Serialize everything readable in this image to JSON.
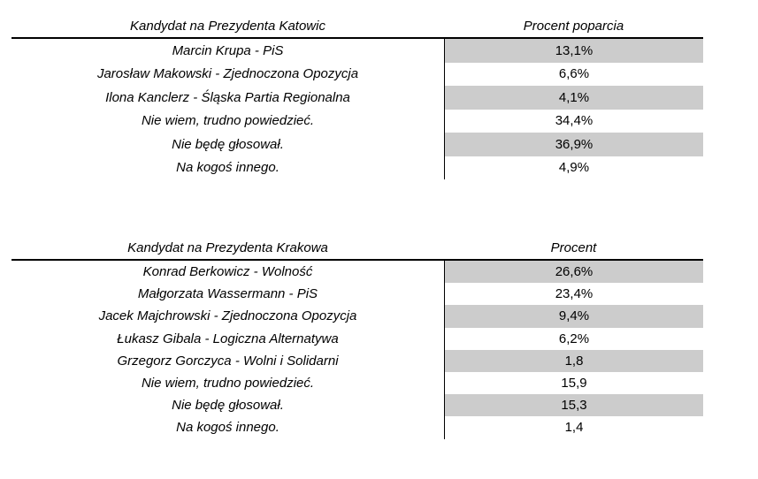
{
  "page": {
    "background": "#ffffff",
    "text_color": "#000000",
    "line_color": "#000000",
    "shade_color": "#cccccc"
  },
  "chart_data": [
    {
      "type": "table",
      "title": "Kandydat na Prezydenta Katowic",
      "columns": [
        "Kandydat na Prezydenta Katowic",
        "Procent poparcia"
      ],
      "rows": [
        {
          "label": "Marcin Krupa - PiS",
          "value": "13,1%",
          "shaded": true
        },
        {
          "label": "Jarosław Makowski - Zjednoczona Opozycja",
          "value": "6,6%",
          "shaded": false
        },
        {
          "label": "Ilona Kanclerz - Śląska Partia Regionalna",
          "value": "4,1%",
          "shaded": true
        },
        {
          "label": "Nie wiem, trudno powiedzieć.",
          "value": "34,4%",
          "shaded": false
        },
        {
          "label": "Nie będę głosował.",
          "value": "36,9%",
          "shaded": true
        },
        {
          "label": "Na kogoś innego.",
          "value": "4,9%",
          "shaded": false
        }
      ]
    },
    {
      "type": "table",
      "title": "Kandydat na Prezydenta Krakowa",
      "columns": [
        "Kandydat na Prezydenta Krakowa",
        "Procent"
      ],
      "rows": [
        {
          "label": "Konrad Berkowicz - Wolność",
          "value": "26,6%",
          "shaded": true
        },
        {
          "label": "Małgorzata Wassermann - PiS",
          "value": "23,4%",
          "shaded": false
        },
        {
          "label": "Jacek Majchrowski - Zjednoczona Opozycja",
          "value": "9,4%",
          "shaded": true
        },
        {
          "label": "Łukasz Gibala - Logiczna Alternatywa",
          "value": "6,2%",
          "shaded": false
        },
        {
          "label": "Grzegorz Gorczyca - Wolni i Solidarni",
          "value": "1,8",
          "shaded": true
        },
        {
          "label": "Nie wiem, trudno powiedzieć.",
          "value": "15,9",
          "shaded": false
        },
        {
          "label": "Nie będę głosował.",
          "value": "15,3",
          "shaded": true
        },
        {
          "label": "Na kogoś innego.",
          "value": "1,4",
          "shaded": false
        }
      ]
    }
  ]
}
